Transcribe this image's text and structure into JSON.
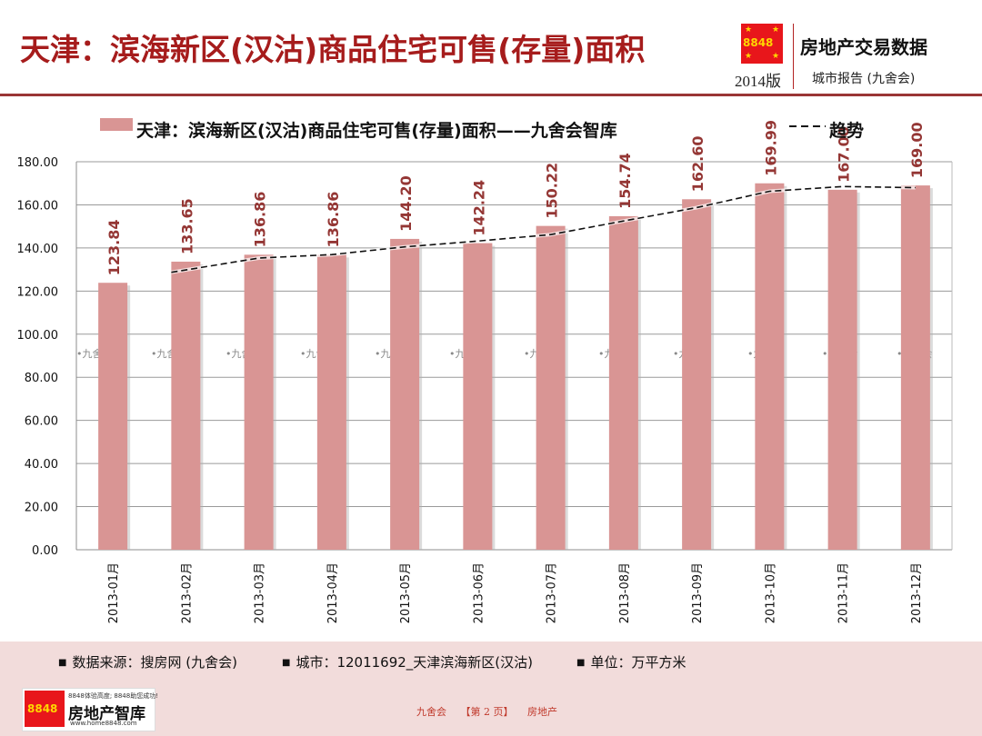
{
  "header": {
    "title": "天津：滨海新区(汉沽)商品住宅可售(存量)面积",
    "logo_text": "8848",
    "edition": "2014版",
    "brand": "房地产交易数据",
    "subtitle": "城市报告 (九舍会)"
  },
  "legend": {
    "series_label": "天津：滨海新区(汉沽)商品住宅可售(存量)面积——九舍会智库",
    "trend_label": "趋势"
  },
  "watermark": "九舍会",
  "chart_data": {
    "type": "bar",
    "categories": [
      "2013-01月",
      "2013-02月",
      "2013-03月",
      "2013-04月",
      "2013-05月",
      "2013-06月",
      "2013-07月",
      "2013-08月",
      "2013-09月",
      "2013-10月",
      "2013-11月",
      "2013-12月"
    ],
    "values": [
      123.84,
      133.65,
      136.86,
      136.86,
      144.2,
      142.24,
      150.22,
      154.74,
      162.6,
      169.99,
      167.0,
      169.0
    ],
    "value_labels": [
      "123.84",
      "133.65",
      "136.86",
      "136.86",
      "144.20",
      "142.24",
      "150.22",
      "154.74",
      "162.60",
      "169.99",
      "167.00",
      "169.00"
    ],
    "trend": [
      null,
      128.7,
      135.3,
      136.9,
      140.5,
      143.2,
      146.2,
      152.5,
      158.7,
      166.3,
      168.5,
      168.0
    ],
    "ylim": [
      0,
      180
    ],
    "yticks": [
      "0.00",
      "20.00",
      "40.00",
      "60.00",
      "80.00",
      "100.00",
      "120.00",
      "140.00",
      "160.00",
      "180.00"
    ],
    "bar_color": "#d99594",
    "label_color": "#943634",
    "grid": true,
    "legend_position": "top"
  },
  "footer": {
    "source": "数据来源：搜房网 (九舍会)",
    "city": "城市：12011692_天津滨海新区(汉沽)",
    "unit": "单位：万平方米",
    "logo_num": "8848",
    "logo_tagline": "8848体验高度; 8848助您成功!",
    "logo_name": "房地产智库",
    "logo_url": "www.home8848.com",
    "page_left": "九舍会",
    "page_mid": "【第 2 页】",
    "page_right": "房地产"
  }
}
